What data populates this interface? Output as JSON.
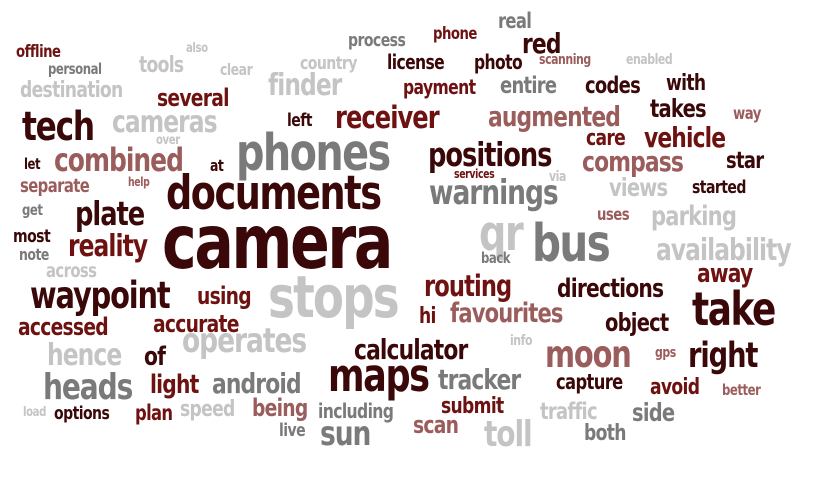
{
  "word_cloud": {
    "words": [
      {
        "text": "offline"
      },
      {
        "text": "personal"
      },
      {
        "text": "tools"
      },
      {
        "text": "also"
      },
      {
        "text": "clear"
      },
      {
        "text": "country"
      },
      {
        "text": "process"
      },
      {
        "text": "license"
      },
      {
        "text": "phone"
      },
      {
        "text": "real"
      },
      {
        "text": "red"
      },
      {
        "text": "photo"
      },
      {
        "text": "scanning"
      },
      {
        "text": "enabled"
      },
      {
        "text": "destination"
      },
      {
        "text": "finder"
      },
      {
        "text": "payment"
      },
      {
        "text": "entire"
      },
      {
        "text": "codes"
      },
      {
        "text": "with"
      },
      {
        "text": "tech"
      },
      {
        "text": "several"
      },
      {
        "text": "cameras"
      },
      {
        "text": "left"
      },
      {
        "text": "receiver"
      },
      {
        "text": "augmented"
      },
      {
        "text": "takes"
      },
      {
        "text": "way"
      },
      {
        "text": "over"
      },
      {
        "text": "phones"
      },
      {
        "text": "care"
      },
      {
        "text": "vehicle"
      },
      {
        "text": "combined"
      },
      {
        "text": "let"
      },
      {
        "text": "at"
      },
      {
        "text": "positions"
      },
      {
        "text": "compass"
      },
      {
        "text": "star"
      },
      {
        "text": "separate"
      },
      {
        "text": "help"
      },
      {
        "text": "documents"
      },
      {
        "text": "services"
      },
      {
        "text": "via"
      },
      {
        "text": "views"
      },
      {
        "text": "started"
      },
      {
        "text": "warnings"
      },
      {
        "text": "plate"
      },
      {
        "text": "get"
      },
      {
        "text": "uses"
      },
      {
        "text": "parking"
      },
      {
        "text": "most"
      },
      {
        "text": "camera"
      },
      {
        "text": "qr"
      },
      {
        "text": "bus"
      },
      {
        "text": "reality"
      },
      {
        "text": "availability"
      },
      {
        "text": "note"
      },
      {
        "text": "back"
      },
      {
        "text": "across"
      },
      {
        "text": "away"
      },
      {
        "text": "waypoint"
      },
      {
        "text": "using"
      },
      {
        "text": "stops"
      },
      {
        "text": "routing"
      },
      {
        "text": "directions"
      },
      {
        "text": "take"
      },
      {
        "text": "accessed"
      },
      {
        "text": "accurate"
      },
      {
        "text": "hi"
      },
      {
        "text": "favourites"
      },
      {
        "text": "object"
      },
      {
        "text": "operates"
      },
      {
        "text": "info"
      },
      {
        "text": "calculator"
      },
      {
        "text": "hence"
      },
      {
        "text": "of"
      },
      {
        "text": "moon"
      },
      {
        "text": "gps"
      },
      {
        "text": "right"
      },
      {
        "text": "maps"
      },
      {
        "text": "heads"
      },
      {
        "text": "light"
      },
      {
        "text": "android"
      },
      {
        "text": "tracker"
      },
      {
        "text": "capture"
      },
      {
        "text": "avoid"
      },
      {
        "text": "better"
      },
      {
        "text": "load"
      },
      {
        "text": "options"
      },
      {
        "text": "plan"
      },
      {
        "text": "speed"
      },
      {
        "text": "being"
      },
      {
        "text": "including"
      },
      {
        "text": "submit"
      },
      {
        "text": "traffic"
      },
      {
        "text": "side"
      },
      {
        "text": "live"
      },
      {
        "text": "sun"
      },
      {
        "text": "scan"
      },
      {
        "text": "toll"
      },
      {
        "text": "both"
      }
    ]
  }
}
